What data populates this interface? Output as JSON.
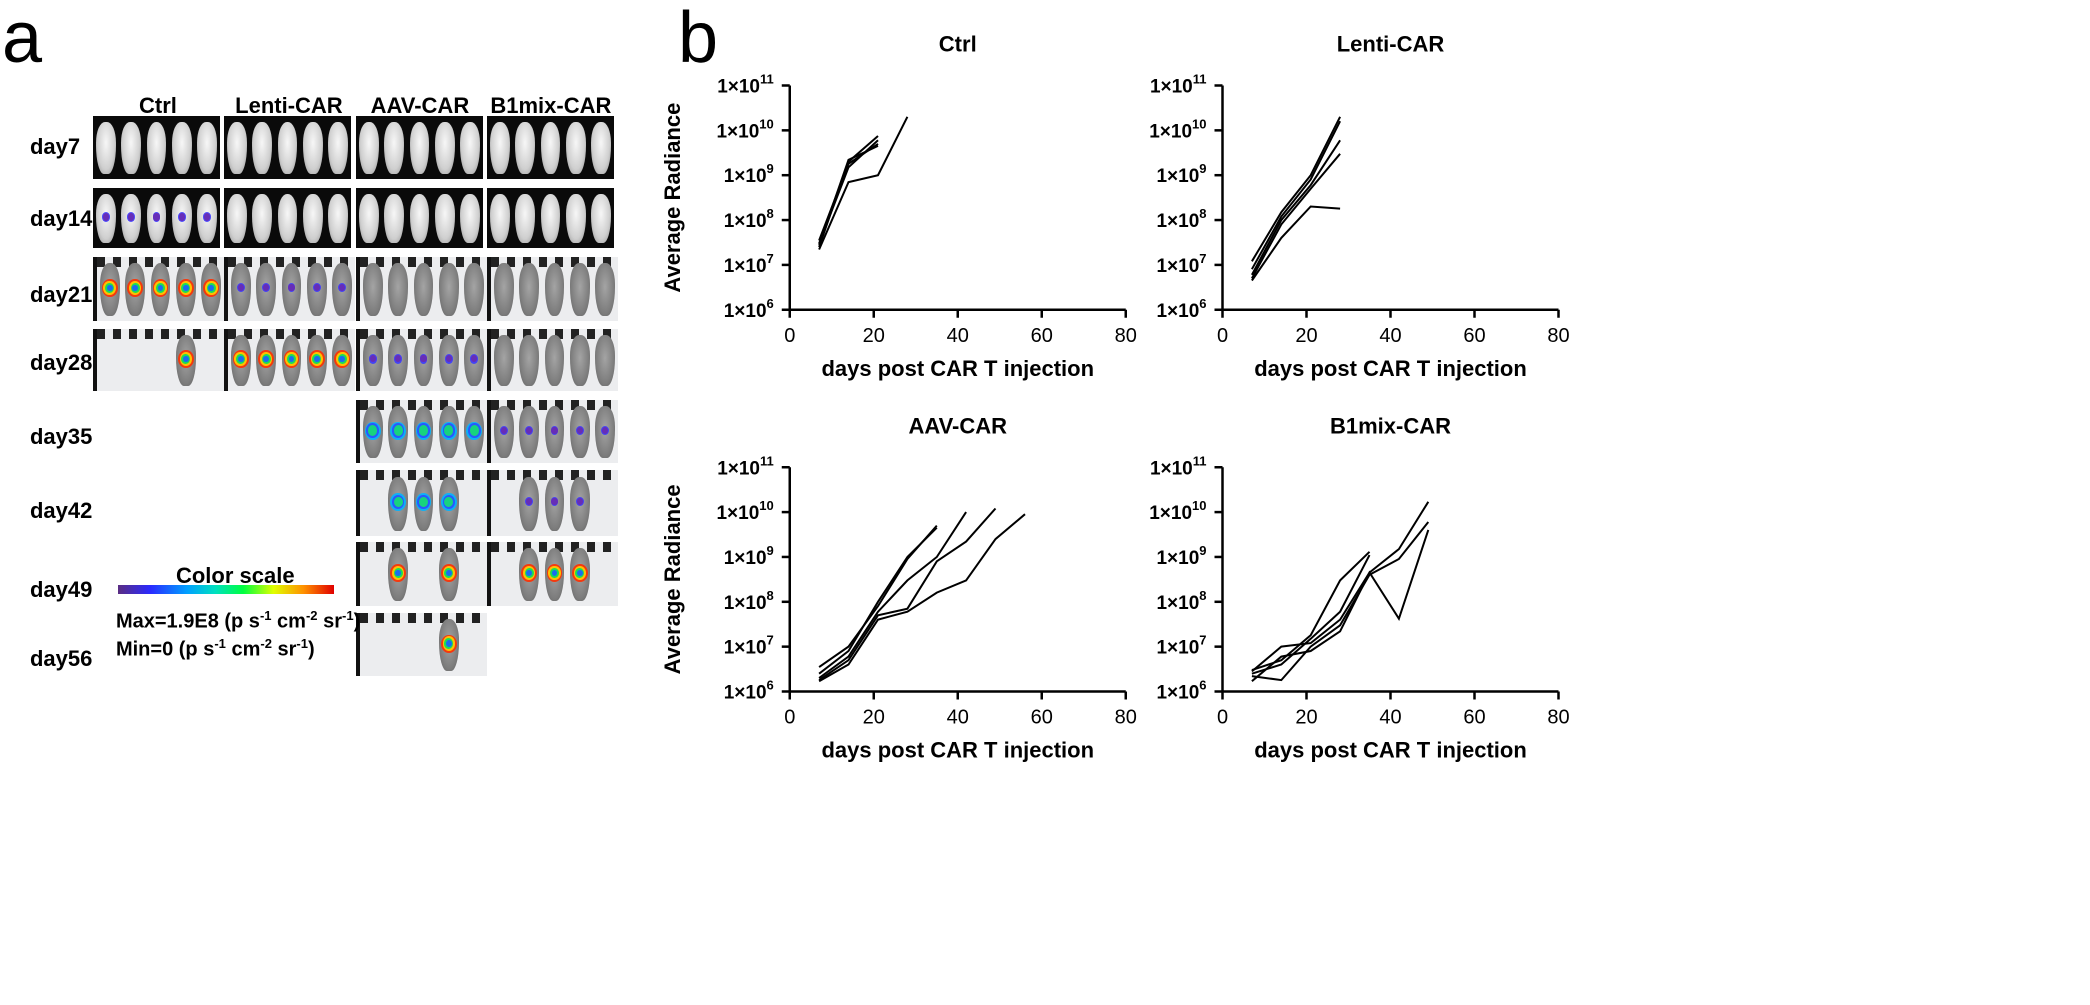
{
  "panels": {
    "a": "a",
    "b": "b"
  },
  "imaging": {
    "columns": [
      "Ctrl",
      "Lenti-CAR",
      "AAV-CAR",
      "B1mix-CAR"
    ],
    "rows": [
      "day7",
      "day14",
      "day21",
      "day28",
      "day35",
      "day42",
      "day49",
      "day56"
    ],
    "color_scale": {
      "title": "Color scale",
      "max_text": "Max=1.9E8 (p s",
      "min_text": "Min=0 (p s",
      "sup_s": "-1",
      "unit_mid": " cm",
      "sup_cm": "-2",
      "unit_end": " sr",
      "sup_sr": "-1",
      "close": ")"
    }
  },
  "chart_data": [
    {
      "type": "line",
      "title": "Ctrl",
      "xlabel": "days post CAR T injection",
      "ylabel": "Average Radiance",
      "xlim": [
        0,
        80
      ],
      "xticks": [
        0,
        20,
        40,
        60,
        80
      ],
      "ylim": [
        1000000,
        100000000000
      ],
      "yscale": "log",
      "yticks": [
        "1×10",
        "1×10",
        "1×10",
        "1×10",
        "1×10",
        "1×10"
      ],
      "ytick_exponents": [
        "6",
        "7",
        "8",
        "9",
        "10",
        "11"
      ],
      "series": [
        {
          "x": [
            7,
            14,
            21
          ],
          "y": [
            25000000,
            2000000000,
            7500000000
          ]
        },
        {
          "x": [
            7,
            14,
            21
          ],
          "y": [
            30000000,
            1500000000,
            6000000000
          ]
        },
        {
          "x": [
            7,
            14,
            21
          ],
          "y": [
            35000000,
            1800000000,
            5000000000
          ]
        },
        {
          "x": [
            7,
            14,
            21
          ],
          "y": [
            28000000,
            2200000000,
            4500000000
          ]
        },
        {
          "x": [
            7,
            14,
            21,
            28
          ],
          "y": [
            22000000,
            700000000,
            1000000000,
            20000000000
          ]
        }
      ]
    },
    {
      "type": "line",
      "title": "Lenti-CAR",
      "xlabel": "days post CAR T injection",
      "ylabel": "",
      "xlim": [
        0,
        80
      ],
      "xticks": [
        0,
        20,
        40,
        60,
        80
      ],
      "ylim": [
        1000000,
        100000000000
      ],
      "yscale": "log",
      "yticks": [
        "1×10",
        "1×10",
        "1×10",
        "1×10",
        "1×10",
        "1×10"
      ],
      "ytick_exponents": [
        "6",
        "7",
        "8",
        "9",
        "10",
        "11"
      ],
      "series": [
        {
          "x": [
            7,
            14,
            21,
            28
          ],
          "y": [
            12000000,
            150000000,
            1000000000,
            20000000000
          ]
        },
        {
          "x": [
            7,
            14,
            21,
            28
          ],
          "y": [
            8000000,
            120000000,
            800000000,
            16000000000
          ]
        },
        {
          "x": [
            7,
            14,
            21,
            28
          ],
          "y": [
            6000000,
            100000000,
            600000000,
            6000000000
          ]
        },
        {
          "x": [
            7,
            14,
            21,
            28
          ],
          "y": [
            5000000,
            80000000,
            500000000,
            3000000000
          ]
        },
        {
          "x": [
            7,
            14,
            21,
            28
          ],
          "y": [
            4500000,
            40000000,
            200000000,
            180000000
          ]
        }
      ]
    },
    {
      "type": "line",
      "title": "AAV-CAR",
      "xlabel": "days post CAR T injection",
      "ylabel": "Average Radiance",
      "xlim": [
        0,
        80
      ],
      "xticks": [
        0,
        20,
        40,
        60,
        80
      ],
      "ylim": [
        1000000,
        100000000000
      ],
      "yscale": "log",
      "yticks": [
        "1×10",
        "1×10",
        "1×10",
        "1×10",
        "1×10",
        "1×10"
      ],
      "ytick_exponents": [
        "6",
        "7",
        "8",
        "9",
        "10",
        "11"
      ],
      "series": [
        {
          "x": [
            7,
            14,
            21,
            28,
            35
          ],
          "y": [
            3500000,
            10000000,
            80000000,
            900000000,
            5000000000
          ]
        },
        {
          "x": [
            7,
            14,
            21,
            28,
            35
          ],
          "y": [
            2500000,
            8000000,
            100000000,
            1000000000,
            4500000000
          ]
        },
        {
          "x": [
            7,
            14,
            21,
            28,
            35,
            42
          ],
          "y": [
            2000000,
            6000000,
            60000000,
            300000000,
            1000000000,
            10000000000
          ]
        },
        {
          "x": [
            7,
            14,
            21,
            28,
            35,
            42,
            49
          ],
          "y": [
            1800000,
            5000000,
            50000000,
            70000000,
            800000000,
            2200000000,
            12000000000
          ]
        },
        {
          "x": [
            7,
            14,
            21,
            28,
            35,
            42,
            49,
            56
          ],
          "y": [
            1700000,
            4000000,
            40000000,
            60000000,
            160000000,
            300000000,
            2500000000,
            9000000000
          ]
        }
      ]
    },
    {
      "type": "line",
      "title": "B1mix-CAR",
      "xlabel": "days post CAR T injection",
      "ylabel": "",
      "xlim": [
        0,
        80
      ],
      "xticks": [
        0,
        20,
        40,
        60,
        80
      ],
      "ylim": [
        1000000,
        100000000000
      ],
      "yscale": "log",
      "yticks": [
        "1×10",
        "1×10",
        "1×10",
        "1×10",
        "1×10",
        "1×10"
      ],
      "ytick_exponents": [
        "6",
        "7",
        "8",
        "9",
        "10",
        "11"
      ],
      "series": [
        {
          "x": [
            7,
            14,
            21,
            28,
            35
          ],
          "y": [
            3000000,
            5000000,
            18000000,
            300000000,
            1300000000
          ]
        },
        {
          "x": [
            7,
            14,
            21,
            28,
            35
          ],
          "y": [
            2500000,
            4000000,
            15000000,
            60000000,
            1100000000
          ]
        },
        {
          "x": [
            7,
            14,
            21,
            28,
            35,
            42,
            49
          ],
          "y": [
            2800000,
            10000000,
            12000000,
            40000000,
            450000000,
            1500000000,
            17000000000
          ]
        },
        {
          "x": [
            7,
            14,
            21,
            28,
            35,
            42,
            49
          ],
          "y": [
            2200000,
            1800000,
            10000000,
            30000000,
            400000000,
            900000000,
            6000000000
          ]
        },
        {
          "x": [
            7,
            14,
            21,
            28,
            35,
            42,
            49
          ],
          "y": [
            1700000,
            6000000,
            8000000,
            22000000,
            450000000,
            42000000,
            4000000000
          ]
        }
      ]
    }
  ]
}
